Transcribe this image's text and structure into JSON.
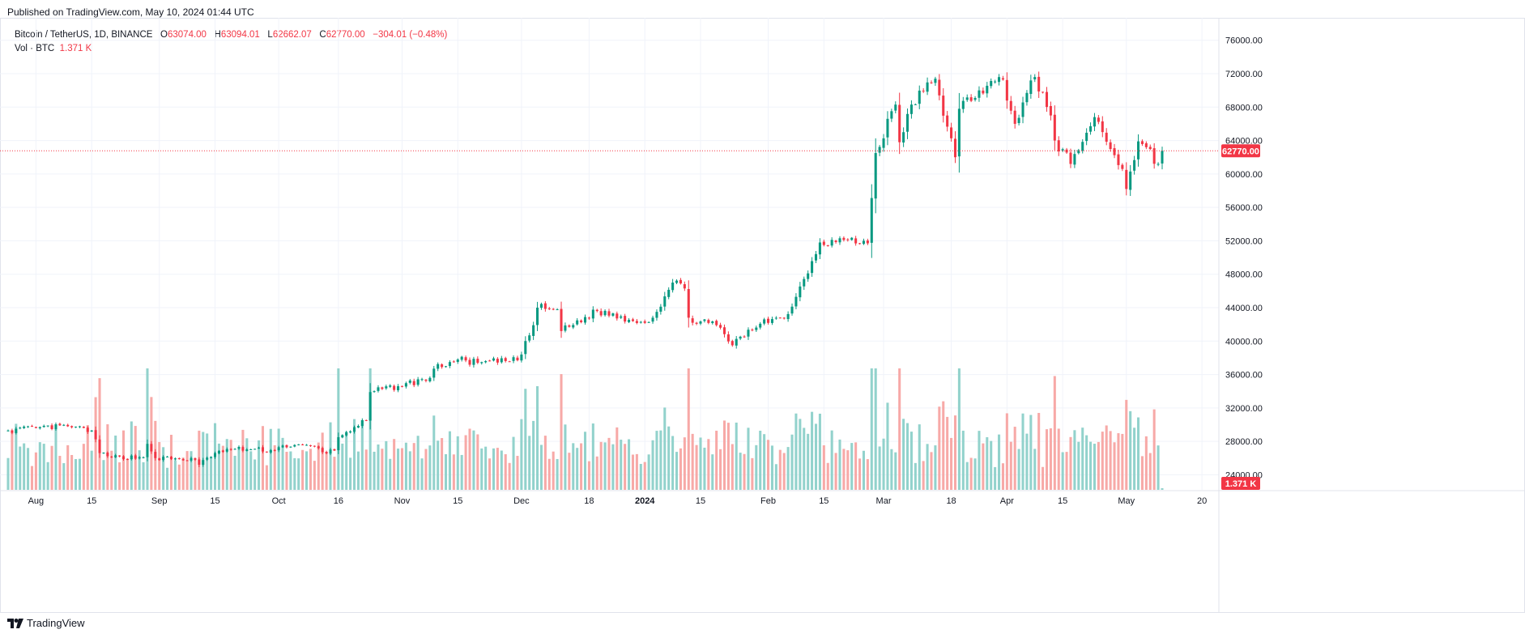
{
  "header": {
    "published": "Published on TradingView.com, May 10, 2024 01:44 UTC"
  },
  "legend": {
    "symbol": "Bitcoin / TetherUS, 1D, BINANCE",
    "open_label": "O",
    "open": "63074.00",
    "high_label": "H",
    "high": "63094.01",
    "low_label": "L",
    "low": "62662.07",
    "close_label": "C",
    "close": "62770.00",
    "change": "−304.01 (−0.48%)",
    "vol_label": "Vol · BTC",
    "vol_value": "1.371 K"
  },
  "footer": {
    "brand": "TradingView",
    "logo_icon": "tradingview-logo-icon"
  },
  "colors": {
    "up": "#089981",
    "down": "#f23645",
    "up_vol": "#92d2cc",
    "down_vol": "#f7a9a7",
    "grid": "#f0f3fa",
    "price_line": "#f23645"
  },
  "chart_data": {
    "type": "candlestick",
    "symbol": "BTCUSDT",
    "interval": "1D",
    "current_price": 62770.0,
    "current_price_label": "62770.00",
    "current_volume_label": "1.371 K",
    "ylim": [
      22200,
      78200
    ],
    "y_ticks": [
      24000,
      28000,
      32000,
      36000,
      40000,
      44000,
      48000,
      52000,
      56000,
      60000,
      64000,
      68000,
      72000,
      76000
    ],
    "y_tick_labels": [
      "24000.00",
      "28000.00",
      "32000.00",
      "36000.00",
      "40000.00",
      "44000.00",
      "48000.00",
      "52000.00",
      "56000.00",
      "60000.00",
      "64000.00",
      "68000.00",
      "72000.00",
      "76000.00"
    ],
    "x_start": "2023-07-25",
    "x_end": "2024-05-10",
    "x_ticks": [
      {
        "date": "2023-08-01",
        "label": "Aug",
        "bold": false
      },
      {
        "date": "2023-08-15",
        "label": "15",
        "bold": false
      },
      {
        "date": "2023-09-01",
        "label": "Sep",
        "bold": false
      },
      {
        "date": "2023-09-15",
        "label": "15",
        "bold": false
      },
      {
        "date": "2023-10-01",
        "label": "Oct",
        "bold": false
      },
      {
        "date": "2023-10-16",
        "label": "16",
        "bold": false
      },
      {
        "date": "2023-11-01",
        "label": "Nov",
        "bold": false
      },
      {
        "date": "2023-11-15",
        "label": "15",
        "bold": false
      },
      {
        "date": "2023-12-01",
        "label": "Dec",
        "bold": false
      },
      {
        "date": "2023-12-18",
        "label": "18",
        "bold": false
      },
      {
        "date": "2024-01-01",
        "label": "2024",
        "bold": true
      },
      {
        "date": "2024-01-15",
        "label": "15",
        "bold": false
      },
      {
        "date": "2024-02-01",
        "label": "Feb",
        "bold": false
      },
      {
        "date": "2024-02-15",
        "label": "15",
        "bold": false
      },
      {
        "date": "2024-03-01",
        "label": "Mar",
        "bold": false
      },
      {
        "date": "2024-03-18",
        "label": "18",
        "bold": false
      },
      {
        "date": "2024-04-01",
        "label": "Apr",
        "bold": false
      },
      {
        "date": "2024-04-15",
        "label": "15",
        "bold": false
      },
      {
        "date": "2024-05-01",
        "label": "May",
        "bold": false
      },
      {
        "date": "2024-05-20",
        "label": "20",
        "bold": false
      }
    ],
    "close_anchors": [
      [
        "2023-07-25",
        29300
      ],
      [
        "2023-08-01",
        29600
      ],
      [
        "2023-08-09",
        29800
      ],
      [
        "2023-08-15",
        29300
      ],
      [
        "2023-08-17",
        26600
      ],
      [
        "2023-08-20",
        26100
      ],
      [
        "2023-08-28",
        26100
      ],
      [
        "2023-08-29",
        27700
      ],
      [
        "2023-08-31",
        26000
      ],
      [
        "2023-09-10",
        25800
      ],
      [
        "2023-09-11",
        25200
      ],
      [
        "2023-09-15",
        26600
      ],
      [
        "2023-09-20",
        27100
      ],
      [
        "2023-09-30",
        26900
      ],
      [
        "2023-10-02",
        27500
      ],
      [
        "2023-10-10",
        27400
      ],
      [
        "2023-10-12",
        26700
      ],
      [
        "2023-10-15",
        26900
      ],
      [
        "2023-10-16",
        28500
      ],
      [
        "2023-10-20",
        29700
      ],
      [
        "2023-10-23",
        30500
      ],
      [
        "2023-10-24",
        33900
      ],
      [
        "2023-10-31",
        34600
      ],
      [
        "2023-11-08",
        35600
      ],
      [
        "2023-11-09",
        36700
      ],
      [
        "2023-11-15",
        37800
      ],
      [
        "2023-11-20",
        37400
      ],
      [
        "2023-11-30",
        37700
      ],
      [
        "2023-12-04",
        41900
      ],
      [
        "2023-12-05",
        44000
      ],
      [
        "2023-12-10",
        43800
      ],
      [
        "2023-12-11",
        41200
      ],
      [
        "2023-12-20",
        43600
      ],
      [
        "2023-12-31",
        42300
      ],
      [
        "2024-01-03",
        42800
      ],
      [
        "2024-01-08",
        47000
      ],
      [
        "2024-01-11",
        46300
      ],
      [
        "2024-01-12",
        42800
      ],
      [
        "2024-01-20",
        41600
      ],
      [
        "2024-01-23",
        39500
      ],
      [
        "2024-01-31",
        42600
      ],
      [
        "2024-02-05",
        42700
      ],
      [
        "2024-02-08",
        45300
      ],
      [
        "2024-02-14",
        51800
      ],
      [
        "2024-02-20",
        52100
      ],
      [
        "2024-02-26",
        51700
      ],
      [
        "2024-02-28",
        62500
      ],
      [
        "2024-03-04",
        68300
      ],
      [
        "2024-03-05",
        63800
      ],
      [
        "2024-03-08",
        68300
      ],
      [
        "2024-03-14",
        71400
      ],
      [
        "2024-03-15",
        69400
      ],
      [
        "2024-03-19",
        62000
      ],
      [
        "2024-03-20",
        67800
      ],
      [
        "2024-03-25",
        70000
      ],
      [
        "2024-03-31",
        71300
      ],
      [
        "2024-04-03",
        66000
      ],
      [
        "2024-04-08",
        71600
      ],
      [
        "2024-04-12",
        67000
      ],
      [
        "2024-04-13",
        64000
      ],
      [
        "2024-04-17",
        61200
      ],
      [
        "2024-04-23",
        66800
      ],
      [
        "2024-04-30",
        60600
      ],
      [
        "2024-05-01",
        58200
      ],
      [
        "2024-05-04",
        63900
      ],
      [
        "2024-05-06",
        63200
      ],
      [
        "2024-05-09",
        61200
      ],
      [
        "2024-05-10",
        62770
      ]
    ],
    "volume_scale": {
      "min": 0,
      "max_k": 150
    }
  }
}
